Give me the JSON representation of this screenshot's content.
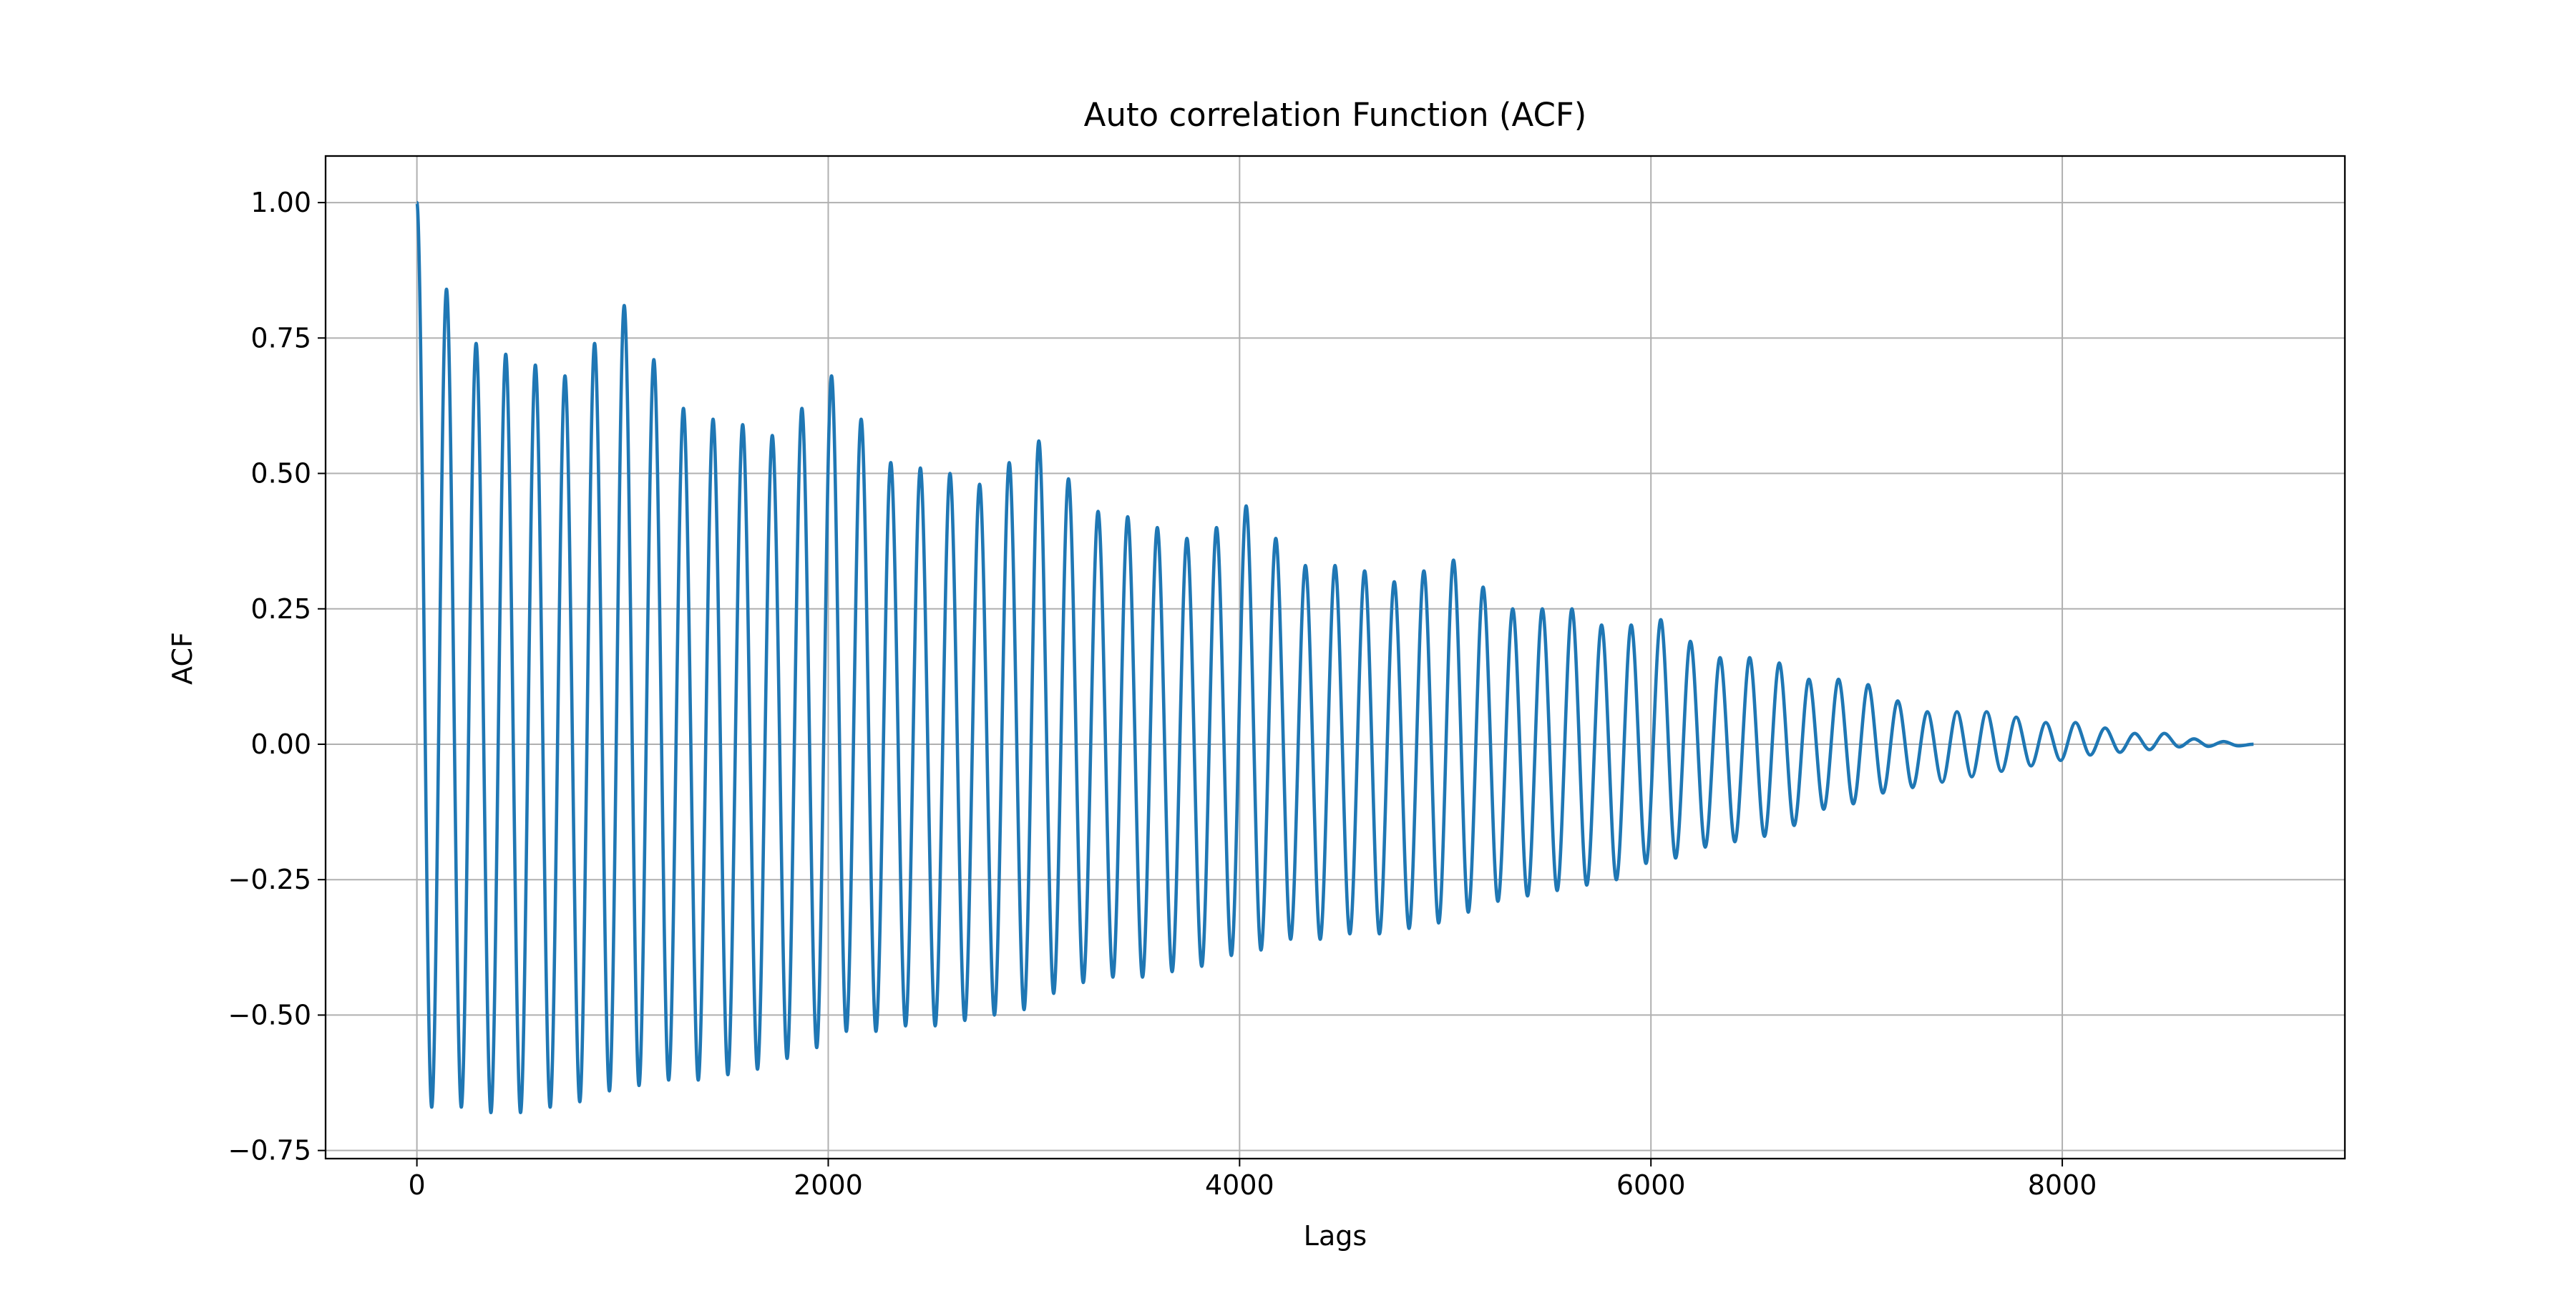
{
  "chart_data": {
    "type": "line",
    "title": "Auto correlation Function (ACF)",
    "xlabel": "Lags",
    "ylabel": "ACF",
    "x": [
      0,
      72,
      144,
      216,
      288,
      360,
      432,
      504,
      576,
      648,
      720,
      792,
      864,
      936,
      1008,
      1080,
      1152,
      1224,
      1296,
      1368,
      1440,
      1512,
      1584,
      1656,
      1728,
      1800,
      1872,
      1944,
      2016,
      2088,
      2160,
      2232,
      2304,
      2376,
      2448,
      2520,
      2592,
      2664,
      2736,
      2808,
      2880,
      2952,
      3024,
      3096,
      3168,
      3240,
      3312,
      3384,
      3456,
      3528,
      3600,
      3672,
      3744,
      3816,
      3888,
      3960,
      4032,
      4104,
      4176,
      4248,
      4320,
      4392,
      4464,
      4536,
      4608,
      4680,
      4752,
      4824,
      4896,
      4968,
      5040,
      5112,
      5184,
      5256,
      5328,
      5400,
      5472,
      5544,
      5616,
      5688,
      5760,
      5832,
      5904,
      5976,
      6048,
      6120,
      6192,
      6264,
      6336,
      6408,
      6480,
      6552,
      6624,
      6696,
      6768,
      6840,
      6912,
      6984,
      7056,
      7128,
      7200,
      7272,
      7344,
      7416,
      7488,
      7560,
      7632,
      7704,
      7776,
      7848,
      7920,
      7992,
      8064,
      8136,
      8208,
      8280,
      8352,
      8424,
      8496,
      8568,
      8640,
      8712,
      8784,
      8856,
      8930
    ],
    "series": [
      {
        "name": "ACF",
        "color": "#1f77b4",
        "values": [
          1.0,
          -0.67,
          0.84,
          -0.67,
          0.74,
          -0.68,
          0.72,
          -0.68,
          0.7,
          -0.67,
          0.68,
          -0.66,
          0.74,
          -0.64,
          0.81,
          -0.63,
          0.71,
          -0.62,
          0.62,
          -0.62,
          0.6,
          -0.61,
          0.59,
          -0.6,
          0.57,
          -0.58,
          0.62,
          -0.56,
          0.68,
          -0.53,
          0.6,
          -0.53,
          0.52,
          -0.52,
          0.51,
          -0.52,
          0.5,
          -0.51,
          0.48,
          -0.5,
          0.52,
          -0.49,
          0.56,
          -0.46,
          0.49,
          -0.44,
          0.43,
          -0.43,
          0.42,
          -0.43,
          0.4,
          -0.42,
          0.38,
          -0.41,
          0.4,
          -0.39,
          0.44,
          -0.38,
          0.38,
          -0.36,
          0.33,
          -0.36,
          0.33,
          -0.35,
          0.32,
          -0.35,
          0.3,
          -0.34,
          0.32,
          -0.33,
          0.34,
          -0.31,
          0.29,
          -0.29,
          0.25,
          -0.28,
          0.25,
          -0.27,
          0.25,
          -0.26,
          0.22,
          -0.25,
          0.22,
          -0.22,
          0.23,
          -0.21,
          0.19,
          -0.19,
          0.16,
          -0.18,
          0.16,
          -0.17,
          0.15,
          -0.15,
          0.12,
          -0.12,
          0.12,
          -0.11,
          0.11,
          -0.09,
          0.08,
          -0.08,
          0.06,
          -0.07,
          0.06,
          -0.06,
          0.06,
          -0.05,
          0.05,
          -0.04,
          0.04,
          -0.03,
          0.04,
          -0.02,
          0.03,
          -0.015,
          0.02,
          -0.01,
          0.02,
          -0.005,
          0.01,
          -0.004,
          0.005,
          -0.003,
          0.0
        ]
      }
    ],
    "xlim": [
      -444,
      9374
    ],
    "xticks": [
      0,
      2000,
      4000,
      6000,
      8000
    ],
    "ylim": [
      -0.765,
      1.086
    ],
    "yticks": [
      {
        "value": -0.75,
        "label": "−0.75"
      },
      {
        "value": -0.5,
        "label": "−0.50"
      },
      {
        "value": -0.25,
        "label": "−0.25"
      },
      {
        "value": 0,
        "label": "0.00"
      },
      {
        "value": 0.25,
        "label": "0.25"
      },
      {
        "value": 0.5,
        "label": "0.50"
      },
      {
        "value": 0.75,
        "label": "0.75"
      },
      {
        "value": 1,
        "label": "1.00"
      }
    ],
    "grid": true
  }
}
